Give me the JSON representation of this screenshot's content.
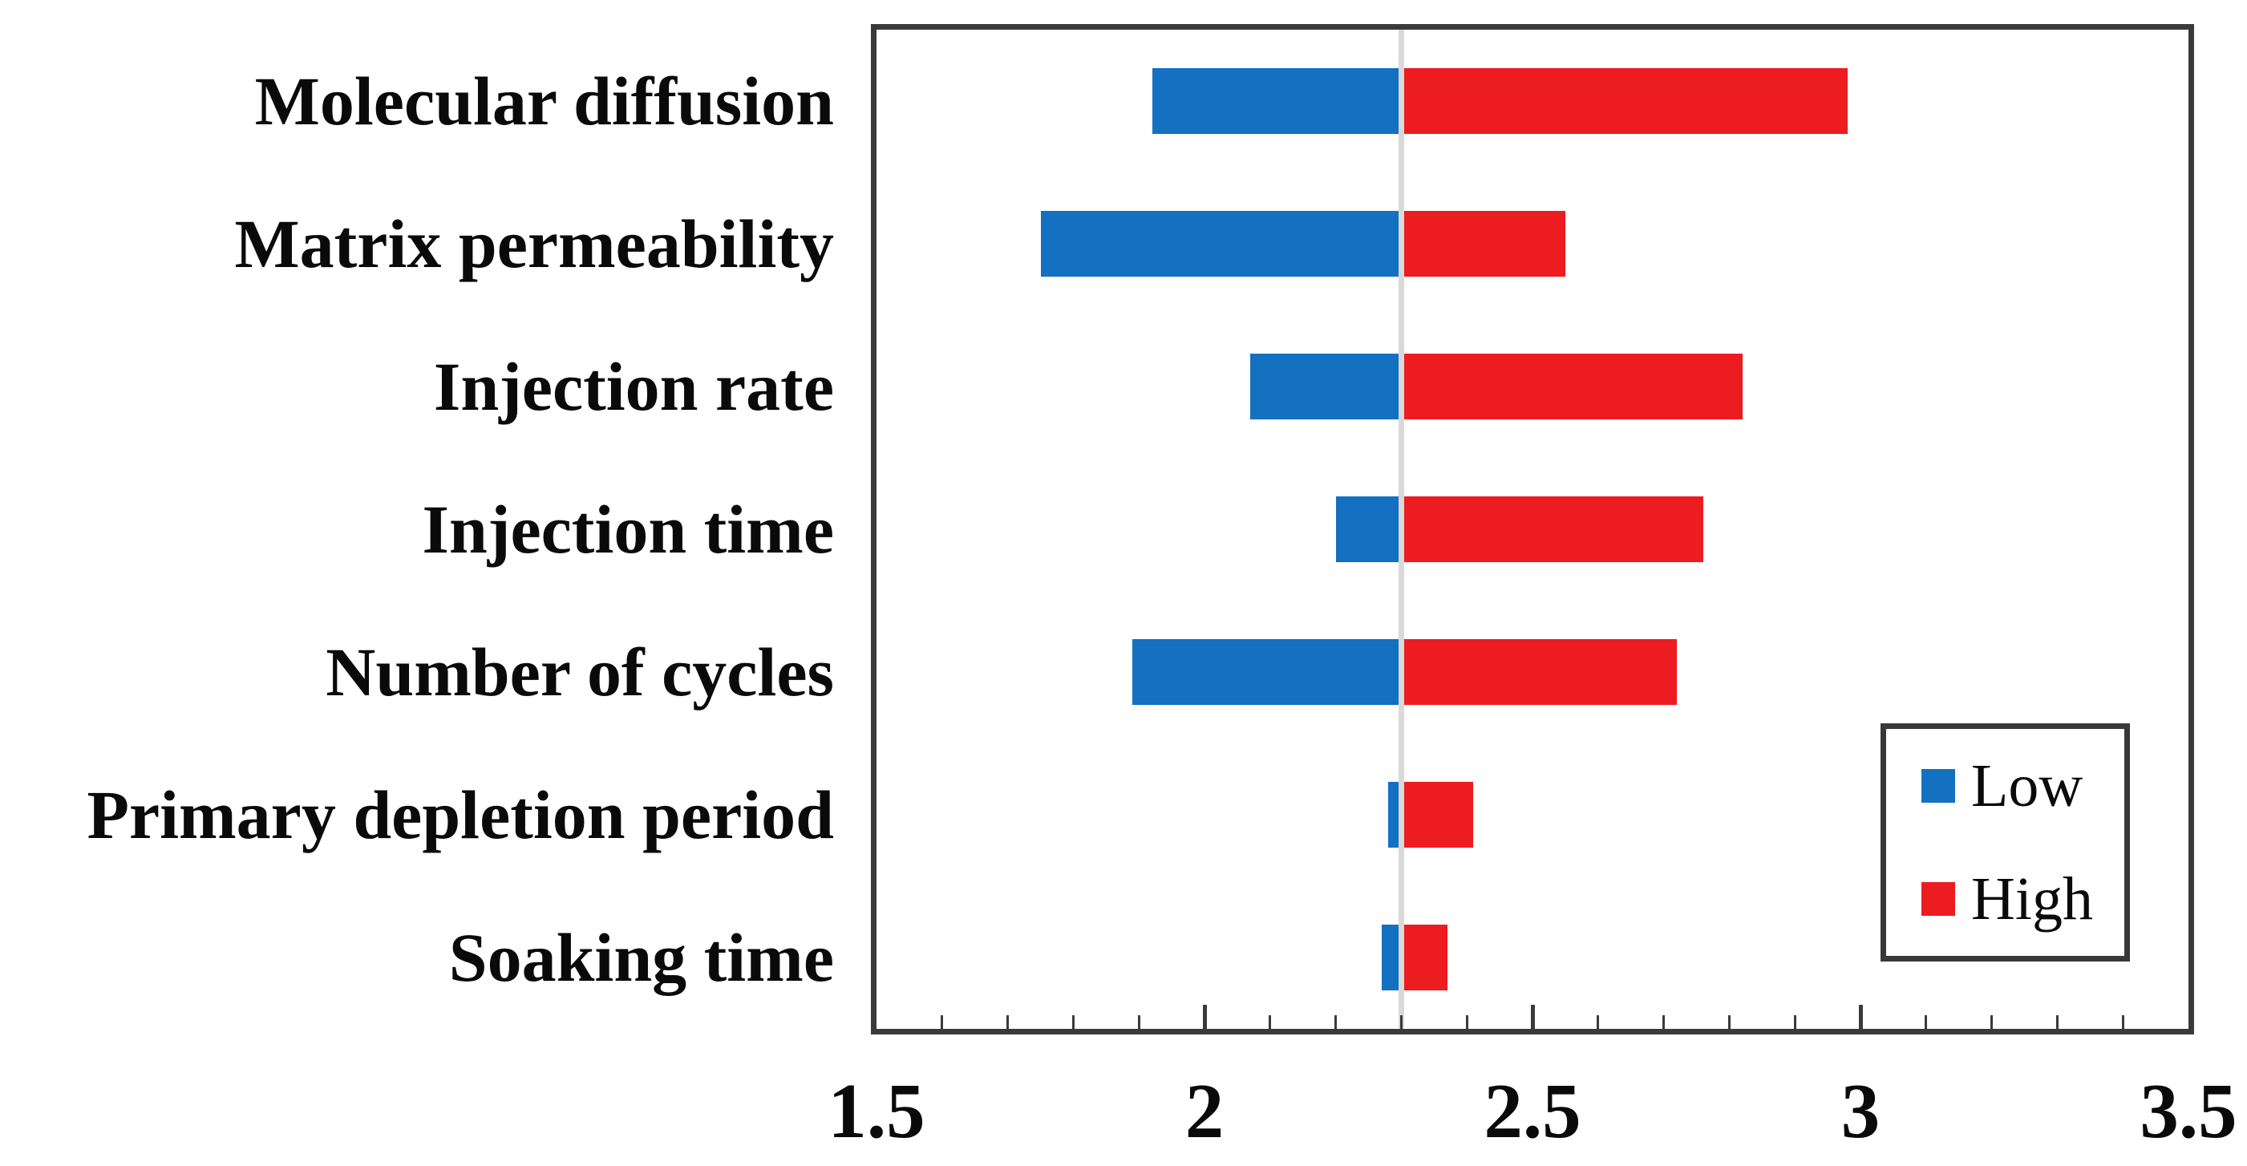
{
  "page": {
    "background": "#FFFFFF"
  },
  "chart_data": {
    "type": "bar",
    "variant": "tornado",
    "orientation": "horizontal",
    "title": "",
    "xlabel": "",
    "ylabel": "",
    "categories": [
      "Molecular diffusion",
      "Matrix permeability",
      "Injection rate",
      "Injection time",
      "Number of cycles",
      "Primary depletion period",
      "Soaking time"
    ],
    "series": [
      {
        "name": "Low",
        "color": "#1470C0",
        "values": [
          1.92,
          1.75,
          2.07,
          2.2,
          1.89,
          2.28,
          2.27
        ]
      },
      {
        "name": "High",
        "color": "#EC1C21",
        "values": [
          2.98,
          2.55,
          2.82,
          2.76,
          2.72,
          2.41,
          2.37
        ]
      }
    ],
    "baseline": 2.3,
    "xlim": [
      1.5,
      3.5
    ],
    "x_major_ticks": [
      1.5,
      2,
      2.5,
      3,
      3.5
    ],
    "x_major_tick_labels": [
      "1.5",
      "2",
      "2.5",
      "3",
      "3.5"
    ],
    "x_minor_tick_step": 0.1,
    "grid": false,
    "legend_position": "inside-bottom-right",
    "legend_entries": [
      {
        "label": "Low",
        "color": "#1470C0"
      },
      {
        "label": "High",
        "color": "#EC1C21"
      }
    ],
    "axis_color": "#3A3A3A",
    "baseline_color": "#D9D9D9",
    "label_color": "#0A0A0A"
  }
}
